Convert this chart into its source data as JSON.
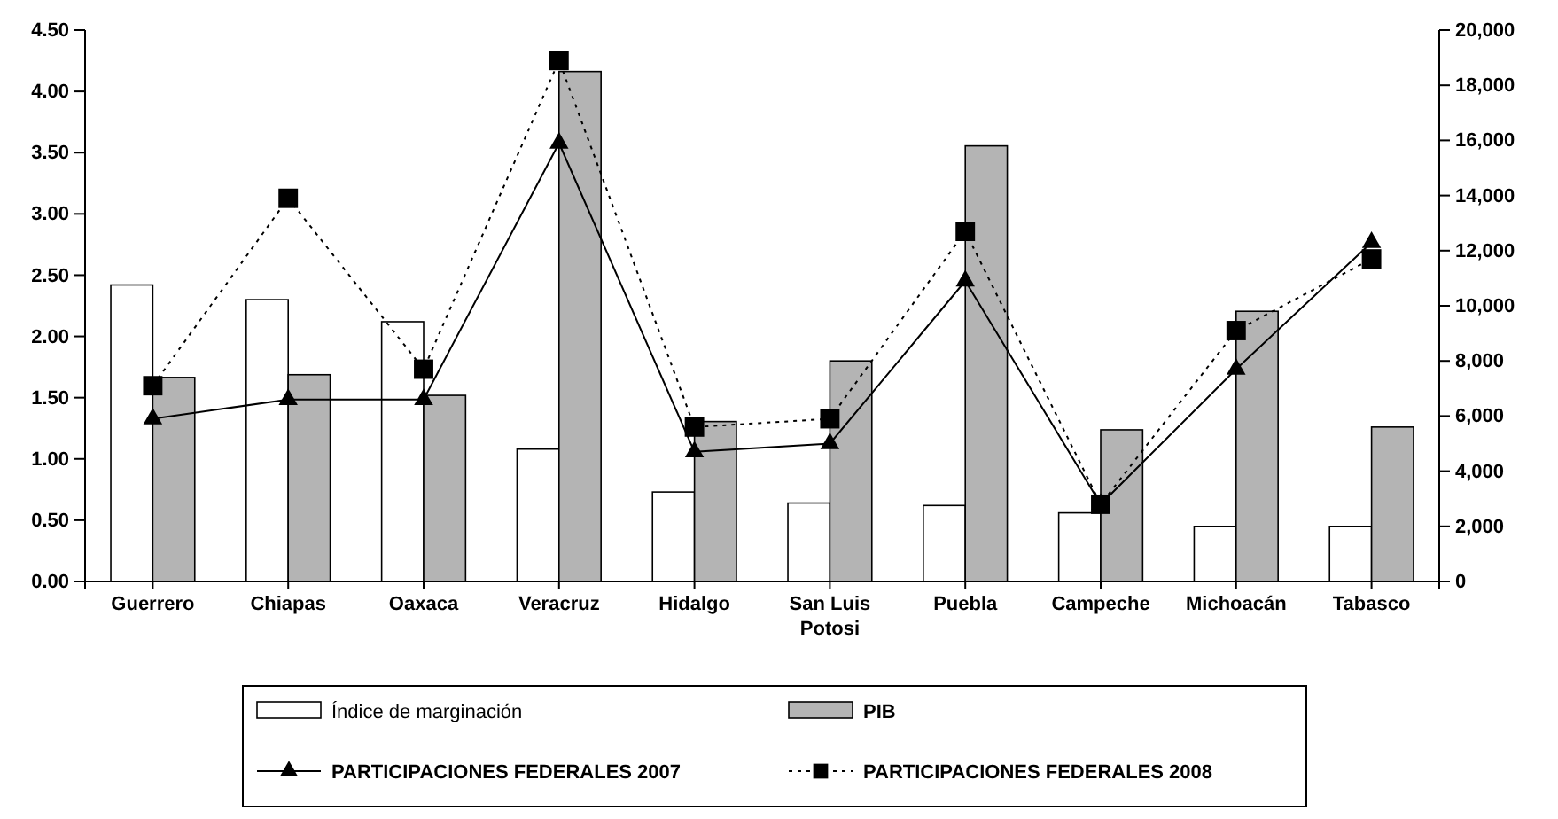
{
  "chart_data": {
    "type": "bar",
    "categories": [
      "Guerrero",
      "Chiapas",
      "Oaxaca",
      "Veracruz",
      "Hidalgo",
      "San Luis\nPotosi",
      "Puebla",
      "Campeche",
      "Michoacán",
      "Tabasco"
    ],
    "series": [
      {
        "name": "Índice de marginación",
        "color": "#ffffff",
        "values": [
          2.42,
          2.3,
          2.12,
          1.08,
          0.73,
          0.64,
          0.62,
          0.56,
          0.45,
          0.45
        ]
      },
      {
        "name": "PIB",
        "axis": "y2",
        "color": "#b4b4b4",
        "values": [
          7400,
          7500,
          6750,
          18500,
          5800,
          8000,
          15800,
          5500,
          9800,
          5600
        ]
      },
      {
        "name": "PARTICIPACIONES FEDERALES 2007",
        "type": "line",
        "axis": "y2",
        "color": "#000000",
        "marker": "triangle",
        "line_style": "solid",
        "values": [
          5900,
          6600,
          6600,
          15900,
          4700,
          5000,
          10900,
          2800,
          7700,
          12300
        ]
      },
      {
        "name": "PARTICIPACIONES FEDERALES 2008",
        "type": "line",
        "axis": "y2",
        "color": "#000000",
        "marker": "square",
        "line_style": "dotted",
        "values": [
          7100,
          13900,
          7700,
          18900,
          5600,
          5900,
          12700,
          2800,
          9100,
          11700
        ]
      }
    ],
    "ylim": [
      0,
      4.5
    ],
    "yticks": [
      {
        "value": 0,
        "label": "0.00"
      },
      {
        "value": 0.5,
        "label": "0.50"
      },
      {
        "value": 1,
        "label": "1.00"
      },
      {
        "value": 1.5,
        "label": "1.50"
      },
      {
        "value": 2,
        "label": "2.00"
      },
      {
        "value": 2.5,
        "label": "2.50"
      },
      {
        "value": 3,
        "label": "3.00"
      },
      {
        "value": 3.5,
        "label": "3.50"
      },
      {
        "value": 4,
        "label": "4.00"
      },
      {
        "value": 4.5,
        "label": "4.50"
      }
    ],
    "y2lim": [
      0,
      20000
    ],
    "y2ticks": [
      {
        "value": 0,
        "label": "0"
      },
      {
        "value": 2000,
        "label": "2,000"
      },
      {
        "value": 4000,
        "label": "4,000"
      },
      {
        "value": 6000,
        "label": "6,000"
      },
      {
        "value": 8000,
        "label": "8,000"
      },
      {
        "value": 10000,
        "label": "10,000"
      },
      {
        "value": 12000,
        "label": "12,000"
      },
      {
        "value": 14000,
        "label": "14,000"
      },
      {
        "value": 16000,
        "label": "16,000"
      },
      {
        "value": 18000,
        "label": "18,000"
      },
      {
        "value": 20000,
        "label": "20,000"
      }
    ],
    "grid": false,
    "legend": "bottom"
  }
}
